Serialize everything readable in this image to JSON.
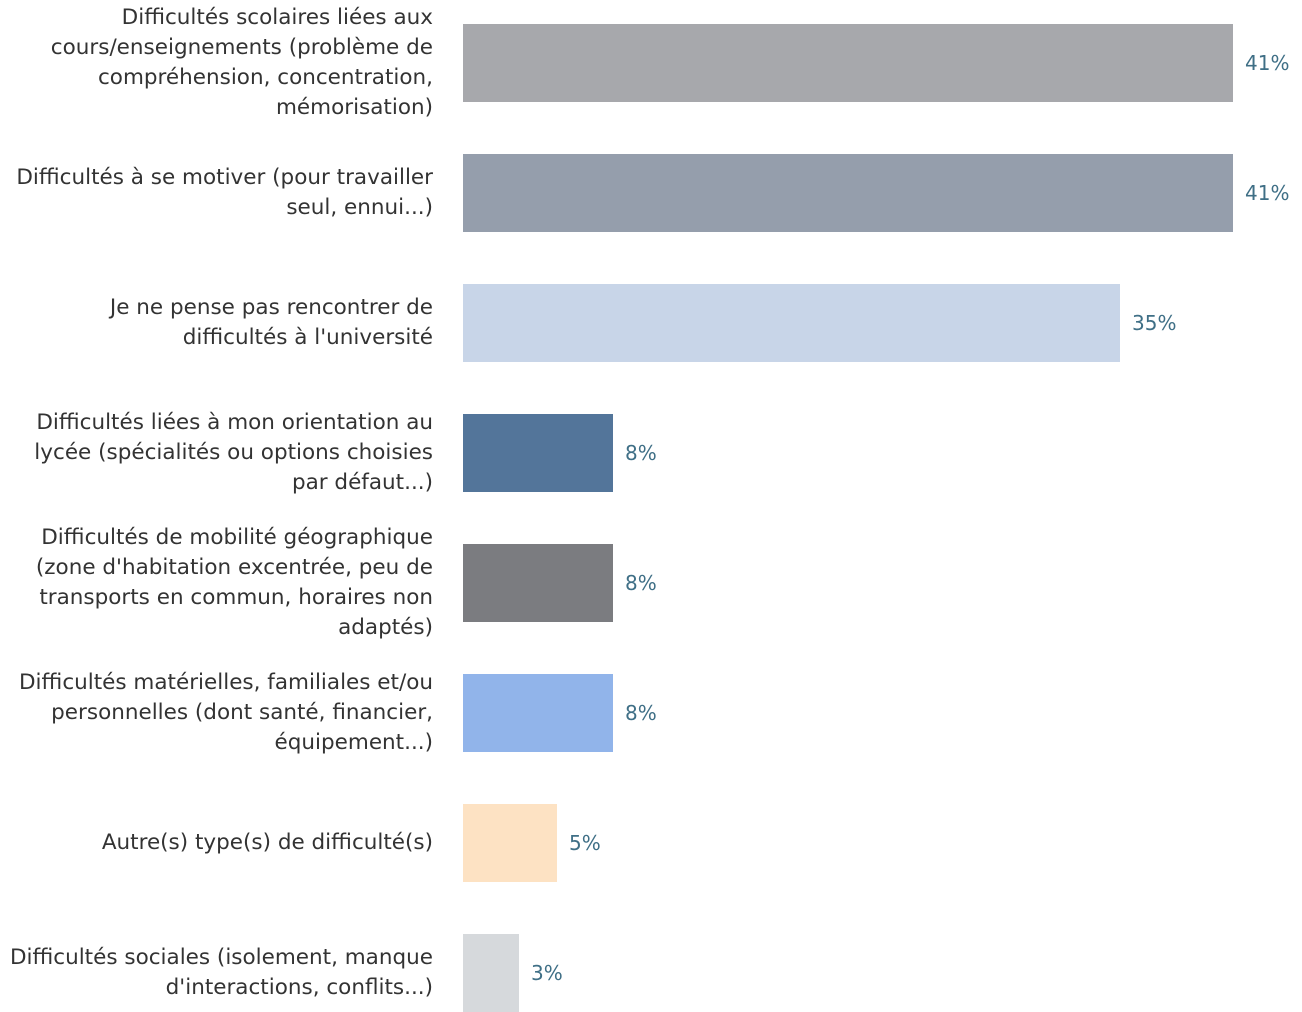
{
  "chart_data": {
    "type": "bar",
    "orientation": "horizontal",
    "categories": [
      "Difficultés scolaires liées aux cours/enseignements (problème de compréhension, concentration, mémorisation)",
      "Difficultés à se motiver (pour travailler seul, ennui...)",
      "Je ne pense pas rencontrer de difficultés à l'université",
      "Difficultés liées à mon orientation au lycée (spécialités ou options choisies par défaut...)",
      "Difficultés de mobilité géographique (zone d'habitation excentrée, peu de transports en commun, horaires non adaptés)",
      "Difficultés matérielles, familiales et/ou personnelles (dont santé, financier, équipement...)",
      "Autre(s) type(s) de difficulté(s)",
      "Difficultés sociales (isolement, manque d'interactions, conflits...)"
    ],
    "values": [
      41,
      41,
      35,
      8,
      8,
      8,
      5,
      3
    ],
    "value_labels": [
      "41%",
      "41%",
      "35%",
      "8%",
      "8%",
      "8%",
      "5%",
      "3%"
    ],
    "colors": [
      "#a7a8ac",
      "#959eac",
      "#c8d5e8",
      "#53759a",
      "#7b7c80",
      "#91b4ea",
      "#fde2c3",
      "#d6d9dc"
    ],
    "xlim": [
      0,
      41
    ],
    "grid": false,
    "legend": "none"
  }
}
